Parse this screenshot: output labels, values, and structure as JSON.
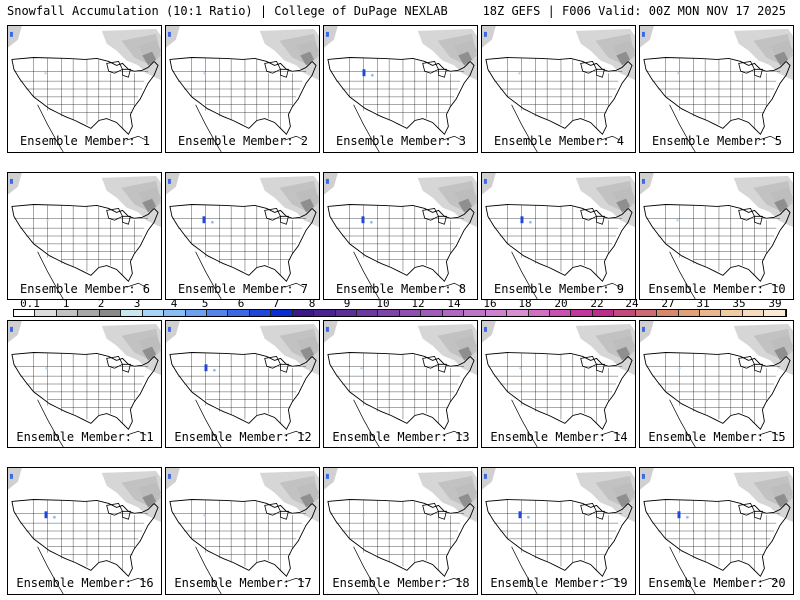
{
  "header": {
    "left": "Snowfall Accumulation (10:1 Ratio) | College of DuPage NEXLAB",
    "right": "18Z GEFS | F006 Valid: 00Z MON NOV 17 2025"
  },
  "members": [
    "Ensemble Member: 1",
    "Ensemble Member: 2",
    "Ensemble Member: 3",
    "Ensemble Member: 4",
    "Ensemble Member: 5",
    "Ensemble Member: 6",
    "Ensemble Member: 7",
    "Ensemble Member: 8",
    "Ensemble Member: 9",
    "Ensemble Member: 10",
    "Ensemble Member: 11",
    "Ensemble Member: 12",
    "Ensemble Member: 13",
    "Ensemble Member: 14",
    "Ensemble Member: 15",
    "Ensemble Member: 16",
    "Ensemble Member: 17",
    "Ensemble Member: 18",
    "Ensemble Member: 19",
    "Ensemble Member: 20"
  ],
  "legend": {
    "labels": [
      "0.1",
      "1",
      "2",
      "3",
      "4",
      "5",
      "6",
      "7",
      "8",
      "9",
      "10",
      "12",
      "14",
      "16",
      "18",
      "20",
      "22",
      "24",
      "27",
      "31",
      "35",
      "39"
    ],
    "colors": [
      "#ffffff",
      "#dcdcdc",
      "#c2c2c2",
      "#a6a6a6",
      "#8a8a8a",
      "#c8e8f0",
      "#a9d3f5",
      "#8bbcf2",
      "#6f9ff0",
      "#5584ea",
      "#3b68e3",
      "#2048d8",
      "#0a2cd0",
      "#3a1a8a",
      "#4b2391",
      "#5c2e98",
      "#6d39a0",
      "#7d44a8",
      "#8e50b0",
      "#9e5cb8",
      "#ae68c0",
      "#bd75c7",
      "#cc82cf",
      "#d78ed3",
      "#d26fc2",
      "#cc50b0",
      "#c5359f",
      "#be2c8f",
      "#c44a7e",
      "#cf6a74",
      "#d8876e",
      "#e0a07a",
      "#e8b78e",
      "#f0cba4",
      "#f6dcbc",
      "#faead6"
    ]
  }
}
